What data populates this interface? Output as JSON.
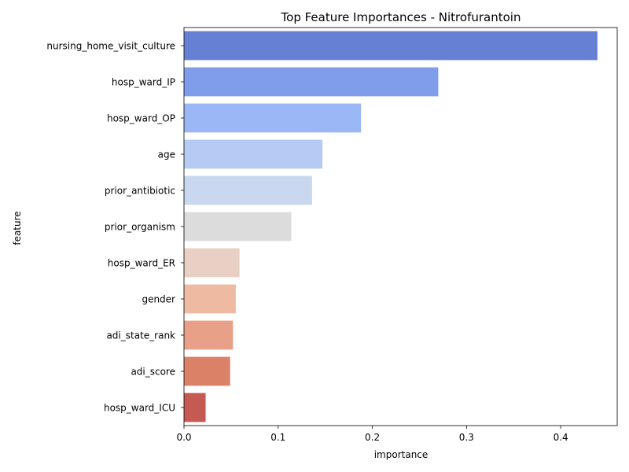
{
  "chart_data": {
    "type": "bar",
    "orientation": "horizontal",
    "title": "Top Feature Importances - Nitrofurantoin",
    "xlabel": "importance",
    "ylabel": "feature",
    "xlim": [
      0,
      0.46
    ],
    "xticks": [
      0.0,
      0.1,
      0.2,
      0.3,
      0.4
    ],
    "xtick_labels": [
      "0.0",
      "0.1",
      "0.2",
      "0.3",
      "0.4"
    ],
    "grid": false,
    "categories": [
      "nursing_home_visit_culture",
      "hosp_ward_IP",
      "hosp_ward_OP",
      "age",
      "prior_antibiotic",
      "prior_organism",
      "hosp_ward_ER",
      "gender",
      "adi_state_rank",
      "adi_score",
      "hosp_ward_ICU"
    ],
    "values": [
      0.439,
      0.27,
      0.188,
      0.147,
      0.136,
      0.114,
      0.059,
      0.055,
      0.052,
      0.049,
      0.023
    ],
    "colors": [
      "#6680d4",
      "#809deb",
      "#9cb7f5",
      "#b5cbf4",
      "#c9d7ef",
      "#dcdcdc",
      "#e9d0c4",
      "#eebba2",
      "#e8a088",
      "#da8168",
      "#c45a52"
    ]
  }
}
